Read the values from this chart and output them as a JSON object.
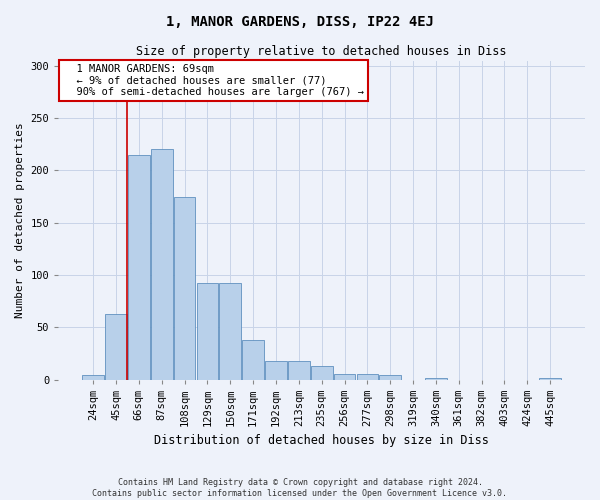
{
  "title": "1, MANOR GARDENS, DISS, IP22 4EJ",
  "subtitle": "Size of property relative to detached houses in Diss",
  "xlabel": "Distribution of detached houses by size in Diss",
  "ylabel": "Number of detached properties",
  "footer_line1": "Contains HM Land Registry data © Crown copyright and database right 2024.",
  "footer_line2": "Contains public sector information licensed under the Open Government Licence v3.0.",
  "categories": [
    "24sqm",
    "45sqm",
    "66sqm",
    "87sqm",
    "108sqm",
    "129sqm",
    "150sqm",
    "171sqm",
    "192sqm",
    "213sqm",
    "235sqm",
    "256sqm",
    "277sqm",
    "298sqm",
    "319sqm",
    "340sqm",
    "361sqm",
    "382sqm",
    "403sqm",
    "424sqm",
    "445sqm"
  ],
  "values": [
    4,
    63,
    215,
    220,
    175,
    92,
    92,
    38,
    18,
    18,
    13,
    5,
    5,
    4,
    0,
    2,
    0,
    0,
    0,
    0,
    2
  ],
  "bar_color": "#b8d0ea",
  "bar_edge_color": "#6090bf",
  "annotation_box_color": "#ffffff",
  "annotation_box_edge_color": "#cc0000",
  "annotation_line_color": "#cc0000",
  "annotation_text": "  1 MANOR GARDENS: 69sqm\n  ← 9% of detached houses are smaller (77)\n  90% of semi-detached houses are larger (767) →",
  "red_line_x": 1.5,
  "ylim": [
    0,
    305
  ],
  "yticks": [
    0,
    50,
    100,
    150,
    200,
    250,
    300
  ],
  "grid_color": "#c8d4e8",
  "background_color": "#eef2fa",
  "title_fontsize": 10,
  "subtitle_fontsize": 8.5,
  "annotation_fontsize": 7.5,
  "xlabel_fontsize": 8.5,
  "ylabel_fontsize": 8,
  "tick_fontsize": 7.5,
  "footer_fontsize": 6
}
